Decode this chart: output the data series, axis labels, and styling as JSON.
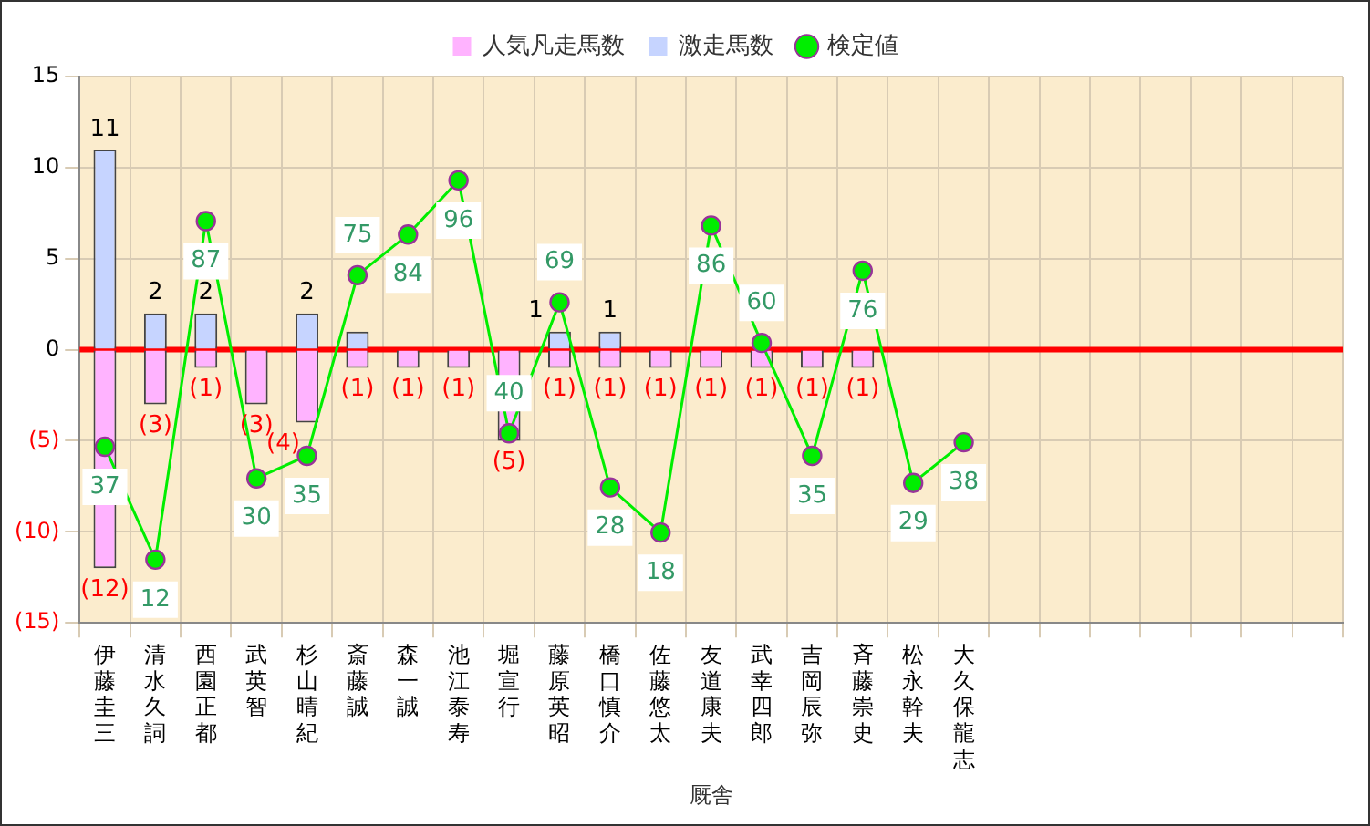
{
  "chart_data": {
    "type": "bar",
    "stacked": true,
    "xlabel": "厩舎",
    "categories": [
      "伊藤圭三",
      "清水久詞",
      "西園正都",
      "武英智",
      "杉山晴紀",
      "斎藤誠",
      "森一誠",
      "池江泰寿",
      "堀宣行",
      "藤原英昭",
      "橋口慎介",
      "佐藤悠太",
      "友道康夫",
      "武幸四郎",
      "吉岡辰弥",
      "斉藤崇史",
      "松永幹夫",
      "大久保龍志",
      null,
      null,
      null,
      null,
      null,
      null,
      null
    ],
    "series": [
      {
        "name": "人気凡走馬数",
        "color": "#ffb3ff",
        "values": [
          -12,
          -3,
          -1,
          -3,
          -4,
          -1,
          -1,
          -1,
          -5,
          -1,
          -1,
          -1,
          -1,
          -1,
          -1,
          -1,
          null,
          null,
          null,
          null,
          null,
          null,
          null,
          null,
          null
        ],
        "value_labels": [
          "(12)",
          "(3)",
          "(1)",
          "(3)",
          "(4)",
          "(1)",
          "(1)",
          "(1)",
          "(5)",
          "(1)",
          "(1)",
          "(1)",
          "(1)",
          "(1)",
          "(1)",
          "(1)",
          null,
          null,
          null,
          null,
          null,
          null,
          null,
          null,
          null
        ]
      },
      {
        "name": "激走馬数",
        "color": "#c6d4ff",
        "values": [
          11,
          2,
          2,
          null,
          2,
          1,
          null,
          null,
          null,
          1,
          1,
          null,
          null,
          null,
          null,
          null,
          null,
          null,
          null,
          null,
          null,
          null,
          null,
          null,
          null
        ],
        "value_labels": [
          "11",
          "2",
          "2",
          null,
          "2",
          null,
          null,
          null,
          null,
          "1",
          "1",
          null,
          null,
          null,
          null,
          null,
          null,
          null,
          null,
          null,
          null,
          null,
          null,
          null,
          null
        ]
      },
      {
        "name": "検定値",
        "type": "line",
        "axis": "y2",
        "color": "#00ee00",
        "values": [
          37,
          12,
          87,
          30,
          35,
          75,
          84,
          96,
          40,
          69,
          28,
          18,
          86,
          60,
          35,
          76,
          29,
          38,
          null,
          null,
          null,
          null,
          null,
          null,
          null
        ],
        "value_labels": [
          "37",
          "12",
          "87",
          "30",
          "35",
          "75",
          "84",
          "96",
          "40",
          "69",
          "28",
          "18",
          "86",
          "60",
          "35",
          "76",
          "29",
          "38",
          null,
          null,
          null,
          null,
          null,
          null,
          null
        ]
      }
    ],
    "ylim": [
      -15,
      15
    ],
    "yticks": [
      15,
      10,
      5,
      0,
      {
        "value": -5,
        "label": "(5)"
      },
      {
        "value": -10,
        "label": "(10)"
      },
      {
        "value": -15,
        "label": "(15)"
      }
    ],
    "y2lim": [
      -2,
      119
    ],
    "ref_lines": [
      {
        "axis": "y",
        "value": 0,
        "color": "#ff0000"
      }
    ],
    "grid": true,
    "legend": "top",
    "marker": "circle",
    "line_style": "solid"
  }
}
